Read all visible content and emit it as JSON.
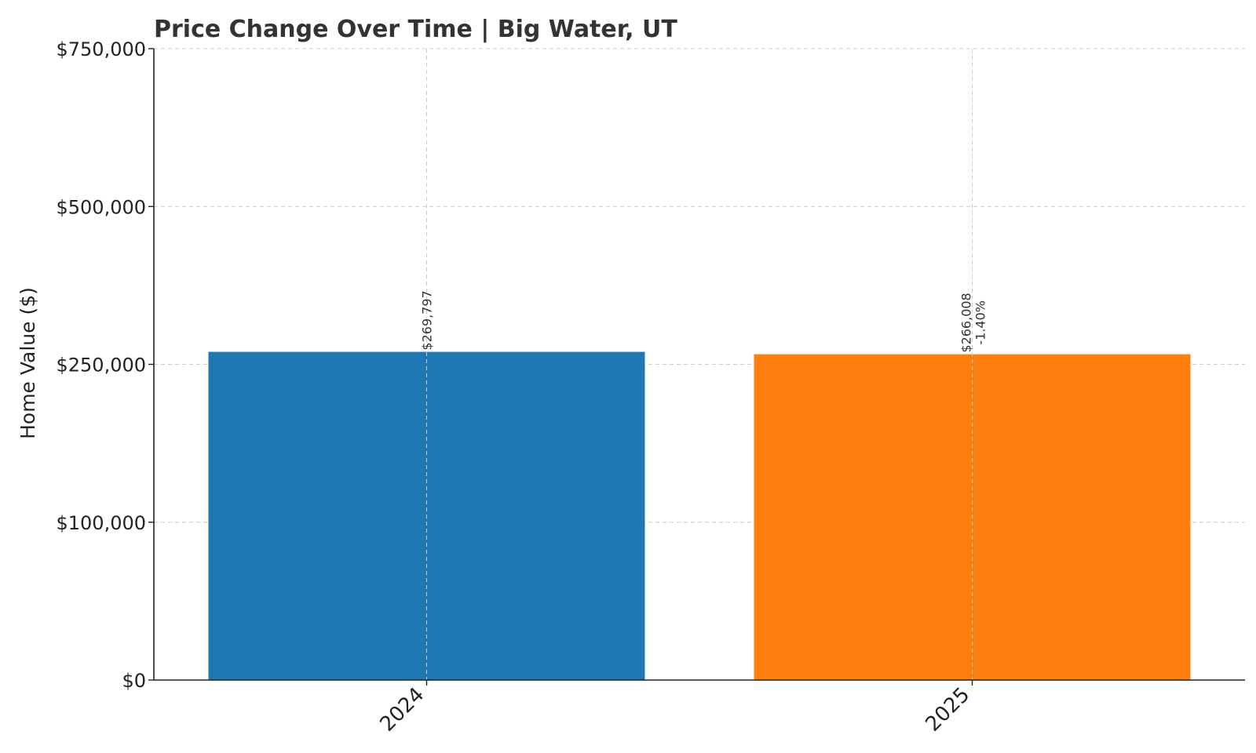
{
  "chart_data": {
    "type": "bar",
    "title": "Price Change Over Time | Big Water, UT",
    "xlabel": "",
    "ylabel": "Home Value ($)",
    "categories": [
      "2024",
      "2025"
    ],
    "values": [
      269797,
      266008
    ],
    "colors": [
      "#1f77b4",
      "#ff7f0e"
    ],
    "value_labels": [
      "$269,797",
      "$266,008"
    ],
    "change_labels": [
      "",
      "-1.40%"
    ],
    "y_ticks": [
      0,
      100000,
      250000,
      500000,
      750000
    ],
    "y_tick_labels": [
      "$0",
      "$100,000",
      "$250,000",
      "$500,000",
      "$750,000"
    ],
    "ylim": [
      0,
      750000
    ],
    "grid": true,
    "legend": "none"
  }
}
